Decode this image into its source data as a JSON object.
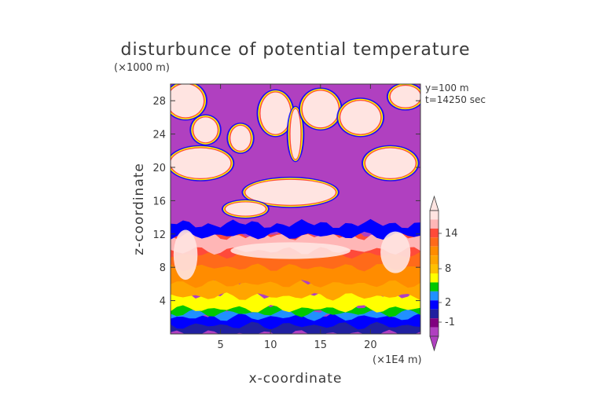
{
  "chart_data": {
    "type": "heatmap",
    "title": "disturbunce of potential temperature",
    "xlabel": "x-coordinate",
    "ylabel": "z-coordinate",
    "x_unit": "(×1E4 m)",
    "y_unit": "(×1000 m)",
    "info": [
      "y=100 m",
      "t=14250 sec"
    ],
    "xlim": [
      0,
      25
    ],
    "ylim": [
      0,
      30
    ],
    "x_ticks": [
      5,
      10,
      15,
      20
    ],
    "y_ticks": [
      4,
      8,
      12,
      16,
      20,
      24,
      28
    ],
    "colorbar": {
      "labels": [
        14,
        8,
        2,
        -1
      ],
      "colors": [
        "#ffe4e1",
        "#ffb6b6",
        "#ff4a3a",
        "#ff6a1a",
        "#ff8c00",
        "#ffa500",
        "#ffc000",
        "#ffff00",
        "#00c800",
        "#2090ff",
        "#0000ff",
        "#2020a0",
        "#800080",
        "#b040c0"
      ]
    },
    "background_color": "#b040c0",
    "layers": [
      {
        "name": "surface",
        "z": [
          0.0,
          2.0
        ],
        "color": "#2020a0"
      },
      {
        "name": "negative-blue",
        "z": [
          1.0,
          2.5
        ],
        "color": "#0000ff"
      },
      {
        "name": "cyan",
        "z": [
          2.0,
          3.0
        ],
        "color": "#2090ff"
      },
      {
        "name": "green",
        "z": [
          2.5,
          3.5
        ],
        "color": "#00c800"
      },
      {
        "name": "yellow",
        "z": [
          3.0,
          4.8
        ],
        "color": "#ffff00"
      },
      {
        "name": "orange-light",
        "z": [
          4.5,
          6.5
        ],
        "color": "#ffa500"
      },
      {
        "name": "orange",
        "z": [
          6.0,
          9.0
        ],
        "color": "#ff8c00"
      },
      {
        "name": "red-orange",
        "z": [
          8.0,
          11.0
        ],
        "color": "#ff6a1a"
      },
      {
        "name": "red",
        "z": [
          9.5,
          12.0
        ],
        "color": "#ff4a3a"
      },
      {
        "name": "pink",
        "z": [
          10.0,
          11.8
        ],
        "color": "#ffb6b6"
      },
      {
        "name": "tropopause-blue",
        "z": [
          11.8,
          13.2
        ],
        "color": "#0000ff"
      }
    ],
    "warm_cells": [
      {
        "x": 1.5,
        "z": 9.5,
        "rx": 1.2,
        "rz": 3.0,
        "color": "#ffe4e1"
      },
      {
        "x": 22.5,
        "z": 9.8,
        "rx": 1.5,
        "rz": 2.5,
        "color": "#ffe4e1"
      },
      {
        "x": 12.0,
        "z": 10.0,
        "rx": 6.0,
        "rz": 1.0,
        "color": "#ffe4e1"
      }
    ],
    "upper_patches": [
      {
        "x": 1.5,
        "z": 28.0,
        "rx": 1.8,
        "rz": 2.0
      },
      {
        "x": 3.5,
        "z": 24.5,
        "rx": 1.2,
        "rz": 1.5
      },
      {
        "x": 3.0,
        "z": 20.5,
        "rx": 3.0,
        "rz": 1.8
      },
      {
        "x": 7.0,
        "z": 23.5,
        "rx": 1.0,
        "rz": 1.5
      },
      {
        "x": 10.5,
        "z": 26.5,
        "rx": 1.5,
        "rz": 2.5
      },
      {
        "x": 12.5,
        "z": 24.0,
        "rx": 0.5,
        "rz": 3.0
      },
      {
        "x": 15.0,
        "z": 27.0,
        "rx": 1.8,
        "rz": 2.2
      },
      {
        "x": 19.0,
        "z": 26.0,
        "rx": 2.0,
        "rz": 2.0
      },
      {
        "x": 23.5,
        "z": 28.5,
        "rx": 1.5,
        "rz": 1.3
      },
      {
        "x": 22.0,
        "z": 20.5,
        "rx": 2.5,
        "rz": 1.8
      },
      {
        "x": 12.0,
        "z": 17.0,
        "rx": 4.5,
        "rz": 1.5
      },
      {
        "x": 7.5,
        "z": 15.0,
        "rx": 2.0,
        "rz": 0.8
      }
    ]
  }
}
